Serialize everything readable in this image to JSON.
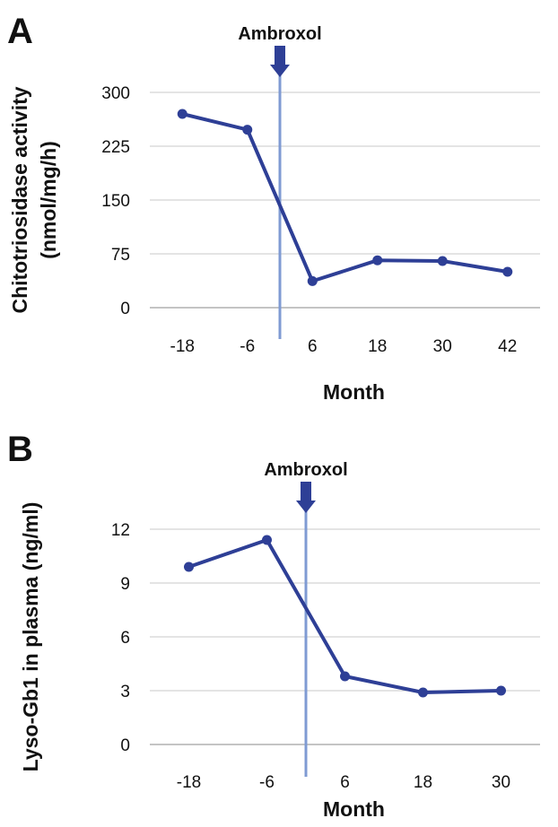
{
  "chart_data": [
    {
      "type": "line",
      "panel_label": "A",
      "categories": [
        "-18",
        "-6",
        "6",
        "18",
        "30",
        "42"
      ],
      "series": [
        {
          "values": [
            270,
            248,
            37,
            66,
            65,
            50
          ]
        }
      ],
      "ylabel": [
        "Chitotriosidase activity",
        "(nmol/mg/h)"
      ],
      "xlabel": "Month",
      "ylim": [
        0,
        300
      ],
      "yticks": [
        "0",
        "75",
        "150",
        "225",
        "300"
      ],
      "annotation": {
        "label": "Ambroxol",
        "between_categories": [
          "-6",
          "6"
        ]
      },
      "color": "#2e3f96",
      "marker_color": "#7f9bd3",
      "grid": true
    },
    {
      "type": "line",
      "panel_label": "B",
      "categories": [
        "-18",
        "-6",
        "6",
        "18",
        "30"
      ],
      "series": [
        {
          "values": [
            9.9,
            11.4,
            3.8,
            2.9,
            3.0
          ]
        }
      ],
      "ylabel": [
        "Lyso-Gb1 in plasma (ng/ml)"
      ],
      "xlabel": "Month",
      "ylim": [
        0,
        12
      ],
      "yticks": [
        "0",
        "3",
        "6",
        "9",
        "12"
      ],
      "annotation": {
        "label": "Ambroxol",
        "between_categories": [
          "-6",
          "6"
        ]
      },
      "color": "#2e3f96",
      "marker_color": "#7f9bd3",
      "grid": true
    }
  ]
}
